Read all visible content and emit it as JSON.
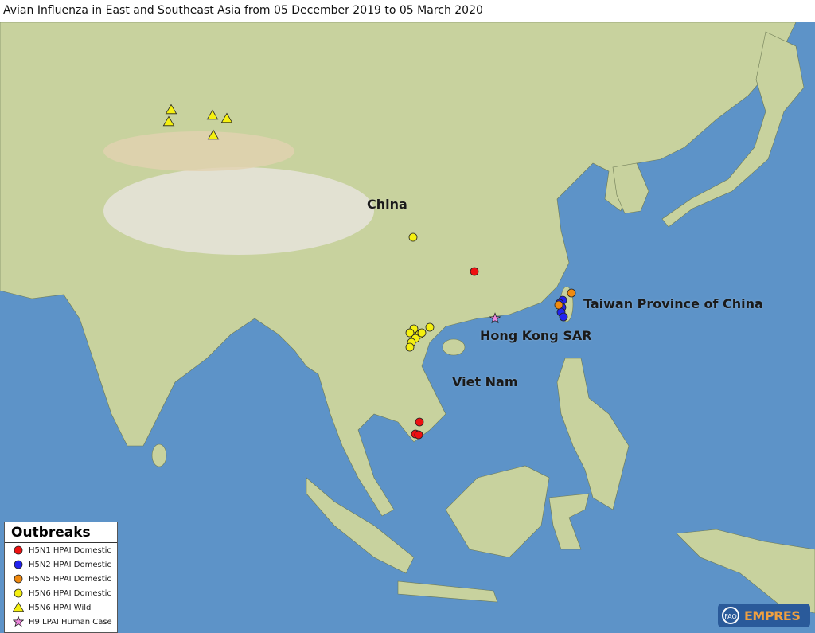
{
  "title": "Avian Influenza in East and Southeast Asia from 05 December 2019 to 05 March 2020",
  "country_labels": {
    "china": "China",
    "taiwan": "Taiwan Province of China",
    "hong_kong": "Hong Kong SAR",
    "viet_nam": "Viet Nam"
  },
  "legend": {
    "title": "Outbreaks",
    "items": [
      {
        "label": "H5N1 HPAI Domestic",
        "shape": "circle",
        "color": "#ee1111"
      },
      {
        "label": "H5N2 HPAI Domestic",
        "shape": "circle",
        "color": "#2222ee"
      },
      {
        "label": "H5N5 HPAI Domestic",
        "shape": "circle",
        "color": "#f08a10"
      },
      {
        "label": "H5N6 HPAI Domestic",
        "shape": "circle",
        "color": "#f5f010"
      },
      {
        "label": "H5N6 HPAI Wild",
        "shape": "triangle",
        "color": "#f5f010"
      },
      {
        "label": "H9 LPAI Human Case",
        "shape": "star",
        "color": "#ee88dd"
      }
    ]
  },
  "logo": {
    "text": "EMPRES",
    "fao": "FAO"
  },
  "colors": {
    "ocean": "#5d93c8",
    "land": "#c8d29e",
    "plateau": "#e6e4da"
  }
}
